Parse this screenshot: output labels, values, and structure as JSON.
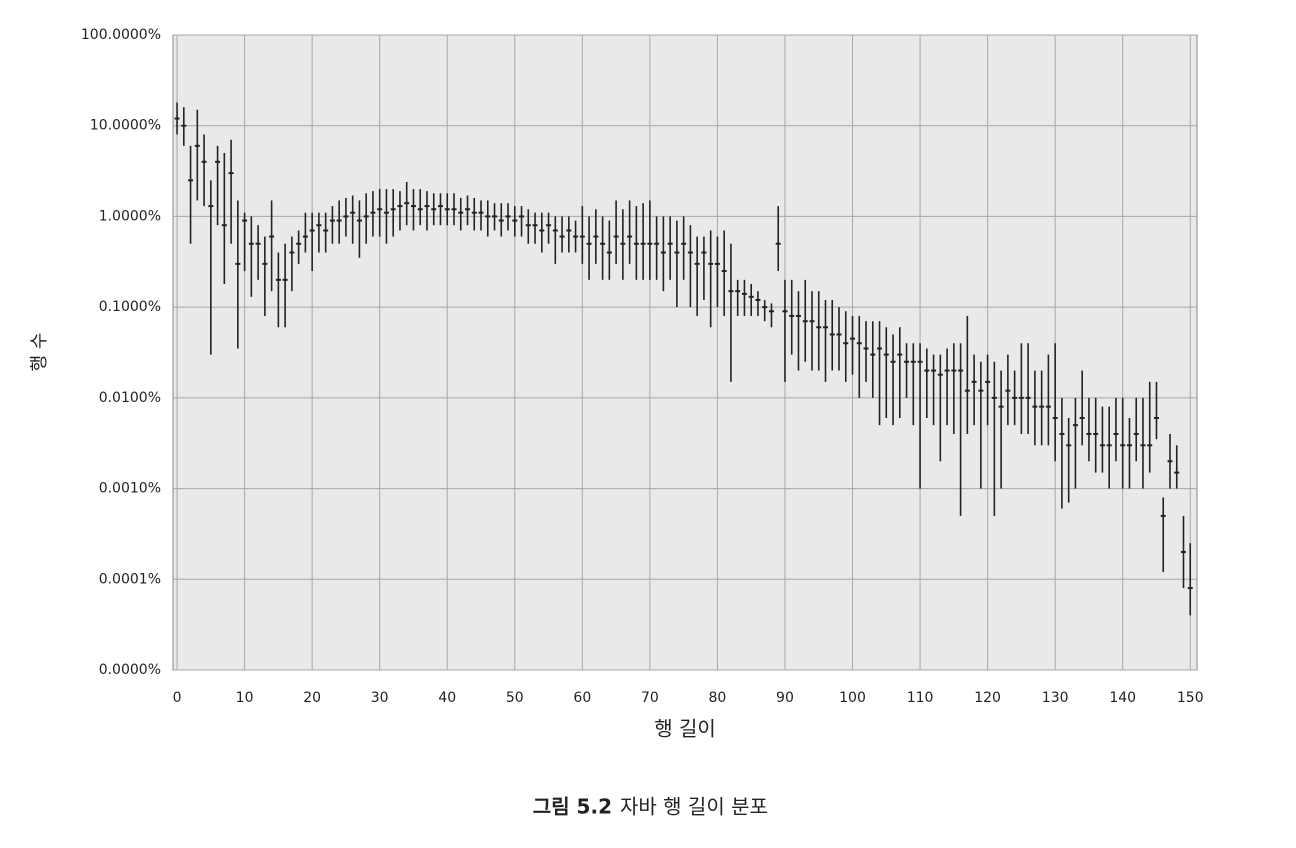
{
  "chart_data": {
    "type": "errorbar",
    "xlabel": "행 길이",
    "ylabel": "행 수",
    "caption_label": "그림 5.2",
    "caption": "자바 행 길이 분포",
    "log_y": true,
    "grid": true,
    "color": "#222222",
    "xlim": [
      -0.6,
      151
    ],
    "xticks": [
      0,
      10,
      20,
      30,
      40,
      50,
      60,
      70,
      80,
      90,
      100,
      110,
      120,
      130,
      140,
      150
    ],
    "ylim": [
      1e-05,
      100
    ],
    "yticks": [
      {
        "value": 1e-05,
        "label": "0.0000%"
      },
      {
        "value": 0.0001,
        "label": "0.0001%"
      },
      {
        "value": 0.001,
        "label": "0.0010%"
      },
      {
        "value": 0.01,
        "label": "0.0100%"
      },
      {
        "value": 0.1,
        "label": "0.1000%"
      },
      {
        "value": 1,
        "label": "1.0000%"
      },
      {
        "value": 10,
        "label": "10.0000%"
      },
      {
        "value": 100,
        "label": "100.0000%"
      }
    ],
    "values": [
      12,
      10,
      2.5,
      6,
      4,
      1.3,
      4,
      0.8,
      3,
      0.3,
      0.9,
      0.5,
      0.5,
      0.3,
      0.6,
      0.2,
      0.2,
      0.4,
      0.5,
      0.6,
      0.7,
      0.8,
      0.7,
      0.9,
      0.9,
      1.0,
      1.1,
      0.9,
      1.0,
      1.1,
      1.2,
      1.1,
      1.2,
      1.3,
      1.4,
      1.3,
      1.2,
      1.3,
      1.2,
      1.3,
      1.2,
      1.2,
      1.1,
      1.2,
      1.1,
      1.1,
      1.0,
      1.0,
      0.9,
      1.0,
      0.9,
      1.0,
      0.8,
      0.8,
      0.7,
      0.8,
      0.7,
      0.6,
      0.7,
      0.6,
      0.6,
      0.5,
      0.6,
      0.5,
      0.4,
      0.6,
      0.5,
      0.6,
      0.5,
      0.5,
      0.5,
      0.5,
      0.4,
      0.5,
      0.4,
      0.5,
      0.4,
      0.3,
      0.4,
      0.3,
      0.3,
      0.25,
      0.15,
      0.15,
      0.14,
      0.13,
      0.12,
      0.1,
      0.09,
      0.5,
      0.09,
      0.08,
      0.08,
      0.07,
      0.07,
      0.06,
      0.06,
      0.05,
      0.05,
      0.04,
      0.045,
      0.04,
      0.035,
      0.03,
      0.035,
      0.03,
      0.025,
      0.03,
      0.025,
      0.025,
      0.025,
      0.02,
      0.02,
      0.018,
      0.02,
      0.02,
      0.02,
      0.012,
      0.015,
      0.012,
      0.015,
      0.01,
      0.008,
      0.012,
      0.01,
      0.01,
      0.01,
      0.008,
      0.008,
      0.008,
      0.006,
      0.004,
      0.003,
      0.005,
      0.006,
      0.004,
      0.004,
      0.003,
      0.003,
      0.004,
      0.003,
      0.003,
      0.004,
      0.003,
      0.003,
      0.006,
      0.0005,
      0.002,
      0.0015,
      0.0002,
      8e-05
    ],
    "low": [
      8,
      6,
      0.5,
      1.5,
      1.3,
      0.03,
      0.8,
      0.18,
      0.5,
      0.035,
      0.25,
      0.13,
      0.2,
      0.08,
      0.15,
      0.06,
      0.06,
      0.15,
      0.3,
      0.4,
      0.25,
      0.4,
      0.4,
      0.5,
      0.5,
      0.6,
      0.5,
      0.35,
      0.5,
      0.6,
      0.6,
      0.5,
      0.6,
      0.7,
      0.8,
      0.7,
      0.8,
      0.7,
      0.8,
      0.8,
      0.8,
      0.8,
      0.7,
      0.8,
      0.7,
      0.7,
      0.6,
      0.7,
      0.6,
      0.7,
      0.6,
      0.6,
      0.5,
      0.5,
      0.4,
      0.5,
      0.3,
      0.4,
      0.4,
      0.4,
      0.3,
      0.2,
      0.3,
      0.2,
      0.2,
      0.3,
      0.2,
      0.3,
      0.2,
      0.2,
      0.2,
      0.2,
      0.15,
      0.2,
      0.1,
      0.2,
      0.1,
      0.08,
      0.12,
      0.06,
      0.1,
      0.08,
      0.015,
      0.08,
      0.08,
      0.08,
      0.08,
      0.07,
      0.06,
      0.25,
      0.015,
      0.03,
      0.02,
      0.025,
      0.02,
      0.02,
      0.015,
      0.02,
      0.02,
      0.015,
      0.018,
      0.01,
      0.015,
      0.01,
      0.005,
      0.006,
      0.005,
      0.006,
      0.01,
      0.005,
      0.001,
      0.006,
      0.005,
      0.002,
      0.005,
      0.004,
      0.0005,
      0.004,
      0.005,
      0.001,
      0.005,
      0.0005,
      0.001,
      0.005,
      0.005,
      0.004,
      0.004,
      0.003,
      0.003,
      0.003,
      0.002,
      0.0006,
      0.0007,
      0.001,
      0.003,
      0.002,
      0.0015,
      0.0015,
      0.001,
      0.002,
      0.001,
      0.001,
      0.002,
      0.001,
      0.0015,
      0.0035,
      0.00012,
      0.001,
      0.001,
      8e-05,
      4e-05
    ],
    "high": [
      18,
      16,
      6,
      15,
      8,
      2.5,
      6,
      5,
      7,
      1.5,
      1.1,
      1,
      0.8,
      0.6,
      1.5,
      0.4,
      0.5,
      0.6,
      0.7,
      1.1,
      1.1,
      1.1,
      1.1,
      1.3,
      1.5,
      1.6,
      1.7,
      1.5,
      1.8,
      1.9,
      2,
      2,
      2,
      1.9,
      2.4,
      2,
      2,
      1.9,
      1.8,
      1.8,
      1.8,
      1.8,
      1.6,
      1.7,
      1.6,
      1.5,
      1.5,
      1.4,
      1.4,
      1.4,
      1.3,
      1.3,
      1.2,
      1.1,
      1.1,
      1.1,
      1.0,
      1.0,
      1.0,
      0.9,
      1.3,
      1.0,
      1.2,
      1.0,
      0.9,
      1.5,
      1.2,
      1.5,
      1.3,
      1.4,
      1.5,
      1.0,
      1.0,
      1.0,
      0.9,
      1.0,
      0.8,
      0.6,
      0.6,
      0.7,
      0.6,
      0.7,
      0.5,
      0.2,
      0.2,
      0.18,
      0.15,
      0.12,
      0.11,
      1.3,
      0.2,
      0.2,
      0.15,
      0.2,
      0.15,
      0.15,
      0.12,
      0.12,
      0.1,
      0.09,
      0.08,
      0.08,
      0.07,
      0.07,
      0.07,
      0.06,
      0.05,
      0.06,
      0.04,
      0.04,
      0.04,
      0.035,
      0.03,
      0.03,
      0.035,
      0.04,
      0.04,
      0.08,
      0.03,
      0.025,
      0.03,
      0.025,
      0.02,
      0.03,
      0.02,
      0.04,
      0.04,
      0.02,
      0.02,
      0.03,
      0.04,
      0.01,
      0.006,
      0.01,
      0.02,
      0.01,
      0.01,
      0.008,
      0.008,
      0.01,
      0.01,
      0.006,
      0.01,
      0.01,
      0.015,
      0.015,
      0.0008,
      0.004,
      0.003,
      0.0005,
      0.00025
    ]
  }
}
